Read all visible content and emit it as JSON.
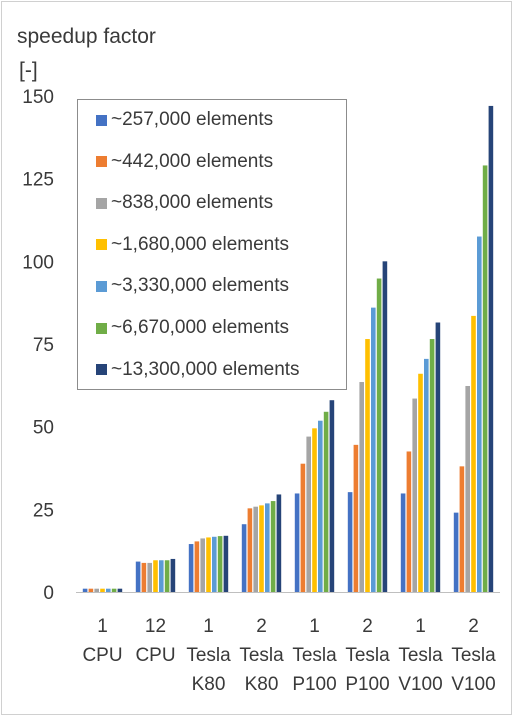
{
  "chart_data": {
    "type": "bar",
    "title": "",
    "ylabel_line1": "speedup factor",
    "ylabel_line2": "[-]",
    "ylim": [
      0,
      150
    ],
    "yticks": [
      0,
      25,
      50,
      75,
      100,
      125,
      150
    ],
    "grid": false,
    "legend_position": "top-left",
    "categories": [
      {
        "line1": "1",
        "line2": "CPU",
        "line3": ""
      },
      {
        "line1": "12",
        "line2": "CPU",
        "line3": ""
      },
      {
        "line1": "1",
        "line2": "Tesla",
        "line3": "K80"
      },
      {
        "line1": "2",
        "line2": "Tesla",
        "line3": "K80"
      },
      {
        "line1": "1",
        "line2": "Tesla",
        "line3": "P100"
      },
      {
        "line1": "2",
        "line2": "Tesla",
        "line3": "P100"
      },
      {
        "line1": "1",
        "line2": "Tesla",
        "line3": "V100"
      },
      {
        "line1": "2",
        "line2": "Tesla",
        "line3": "V100"
      }
    ],
    "series": [
      {
        "name": "~257,000 elements",
        "color": "#4472c4",
        "values": [
          1,
          9.2,
          14.5,
          20.5,
          29.8,
          30.2,
          29.8,
          24
        ]
      },
      {
        "name": "~442,000 elements",
        "color": "#ed7d31",
        "values": [
          1,
          8.8,
          15.3,
          25.3,
          38.8,
          44.5,
          42.5,
          38
        ]
      },
      {
        "name": "~838,000 elements",
        "color": "#a5a5a5",
        "values": [
          1,
          8.8,
          16.2,
          25.8,
          47,
          63.5,
          58.5,
          62.3
        ]
      },
      {
        "name": "~1,680,000 elements",
        "color": "#ffc000",
        "values": [
          1,
          9.6,
          16.5,
          26.2,
          49.5,
          76.5,
          66,
          83.5
        ]
      },
      {
        "name": "~3,330,000 elements",
        "color": "#5b9bd5",
        "values": [
          1,
          9.6,
          16.7,
          26.8,
          51.8,
          86,
          70.5,
          107.5
        ]
      },
      {
        "name": "~6,670,000 elements",
        "color": "#70ad47",
        "values": [
          1,
          9.6,
          16.9,
          27.5,
          54.5,
          94.8,
          76.5,
          129
        ]
      },
      {
        "name": "~13,300,000 elements",
        "color": "#264478",
        "values": [
          1,
          10,
          17,
          29.5,
          58,
          100,
          81.5,
          147
        ]
      }
    ]
  }
}
